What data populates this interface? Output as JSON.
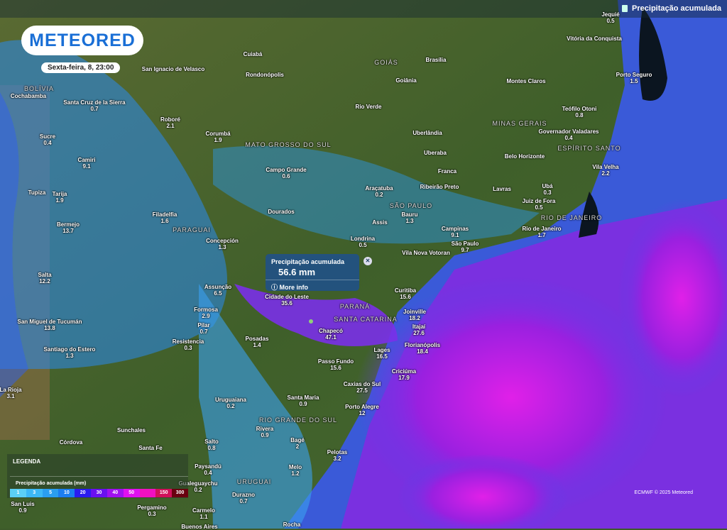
{
  "header": {
    "layer_title": "Precipitação acumulada",
    "layer_icon": "rain-gauge-icon"
  },
  "logo": "METEORED",
  "date": "Sexta-feira, 8, 23:00",
  "popup": {
    "title": "Precipitação acumulada",
    "value": "56.6 mm",
    "more": "More info",
    "close": "✕"
  },
  "legend": {
    "title": "LEGENDA",
    "subtitle": "Precipitação acumulada (mm)",
    "steps": [
      {
        "v": "1",
        "c": "#5bcff5"
      },
      {
        "v": "3",
        "c": "#3cb8f5"
      },
      {
        "v": "5",
        "c": "#2a9ef0"
      },
      {
        "v": "10",
        "c": "#1b7ef0"
      },
      {
        "v": "20",
        "c": "#2a1cf0"
      },
      {
        "v": "30",
        "c": "#6a10f0"
      },
      {
        "v": "40",
        "c": "#a010f0"
      },
      {
        "v": "50",
        "c": "#e010f0"
      },
      {
        "v": "",
        "c": "#f010c0"
      },
      {
        "v": "150",
        "c": "#d0105a"
      },
      {
        "v": "300",
        "c": "#6a0010"
      }
    ]
  },
  "credit": "ECMWF © 2025 Meteored",
  "regions": [
    "BOLÍVIA",
    "GOIÁS",
    "MINAS GERAIS",
    "ESPÍRITO SANTO",
    "MATO GROSSO DO SUL",
    "SÃO PAULO",
    "RIO DE JANEIRO",
    "PARAGUAI",
    "PARANÁ",
    "SANTA CATARINA",
    "RIO GRANDE DO SUL",
    "URUGUAI"
  ],
  "cities": [
    {
      "n": "Jequié",
      "v": "0.5"
    },
    {
      "n": "Vitória da Conquista",
      "v": ""
    },
    {
      "n": "Cuiabá",
      "v": ""
    },
    {
      "n": "Brasília",
      "v": ""
    },
    {
      "n": "Rondonópolis",
      "v": ""
    },
    {
      "n": "Goiânia",
      "v": ""
    },
    {
      "n": "Montes Claros",
      "v": ""
    },
    {
      "n": "Porto Seguro",
      "v": "1.5"
    },
    {
      "n": "San Ignacio de Velasco",
      "v": ""
    },
    {
      "n": "Cochabamba",
      "v": ""
    },
    {
      "n": "Santa Cruz de la Sierra",
      "v": "0.7"
    },
    {
      "n": "Roboré",
      "v": "2.1"
    },
    {
      "n": "Rio Verde",
      "v": ""
    },
    {
      "n": "Teófilo Otoni",
      "v": "0.8"
    },
    {
      "n": "Sucre",
      "v": "0.4"
    },
    {
      "n": "Corumbá",
      "v": "1.9"
    },
    {
      "n": "Uberlândia",
      "v": ""
    },
    {
      "n": "Governador Valadares",
      "v": "0.4"
    },
    {
      "n": "Camiri",
      "v": "9.1"
    },
    {
      "n": "Uberaba",
      "v": ""
    },
    {
      "n": "Belo Horizonte",
      "v": ""
    },
    {
      "n": "Campo Grande",
      "v": "0.6"
    },
    {
      "n": "Franca",
      "v": ""
    },
    {
      "n": "Vila Velha",
      "v": "2.2"
    },
    {
      "n": "Tupiza",
      "v": ""
    },
    {
      "n": "Tarija",
      "v": "1.9"
    },
    {
      "n": "Araçatuba",
      "v": "0.2"
    },
    {
      "n": "Ribeirão Preto",
      "v": ""
    },
    {
      "n": "Lavras",
      "v": ""
    },
    {
      "n": "Ubá",
      "v": "0.3"
    },
    {
      "n": "Juiz de Fora",
      "v": "0.5"
    },
    {
      "n": "Dourados",
      "v": ""
    },
    {
      "n": "Filadelfia",
      "v": "1.6"
    },
    {
      "n": "Bauru",
      "v": "1.3"
    },
    {
      "n": "Assis",
      "v": ""
    },
    {
      "n": "Bermejo",
      "v": "13.7"
    },
    {
      "n": "Concepción",
      "v": "1.3"
    },
    {
      "n": "Londrina",
      "v": "0.5"
    },
    {
      "n": "Campinas",
      "v": "9.1"
    },
    {
      "n": "São Paulo",
      "v": "9.7"
    },
    {
      "n": "Rio de Janeiro",
      "v": "1.7"
    },
    {
      "n": "Salta",
      "v": "12.2"
    },
    {
      "n": "Assunção",
      "v": "6.5"
    },
    {
      "n": "Cidade do Leste",
      "v": "35.6"
    },
    {
      "n": "Curitiba",
      "v": "15.6"
    },
    {
      "n": "Formosa",
      "v": "2.9"
    },
    {
      "n": "Joinville",
      "v": "18.2"
    },
    {
      "n": "San Miguel de Tucumán",
      "v": "13.8"
    },
    {
      "n": "Pilar",
      "v": "0.7"
    },
    {
      "n": "Itajaí",
      "v": "27.6"
    },
    {
      "n": "Chapecó",
      "v": "47.1"
    },
    {
      "n": "Resistencia",
      "v": "0.3"
    },
    {
      "n": "Posadas",
      "v": "1.4"
    },
    {
      "n": "Florianópolis",
      "v": "18.4"
    },
    {
      "n": "Lages",
      "v": "16.5"
    },
    {
      "n": "Santiago do Estero",
      "v": "1.3"
    },
    {
      "n": "Passo Fundo",
      "v": "15.6"
    },
    {
      "n": "Criciúma",
      "v": "17.9"
    },
    {
      "n": "La Rioja",
      "v": "3.1"
    },
    {
      "n": "Caxias do Sul",
      "v": "27.5"
    },
    {
      "n": "Santa Maria",
      "v": "0.9"
    },
    {
      "n": "Uruguaiana",
      "v": "0.2"
    },
    {
      "n": "Porto Alegre",
      "v": "12"
    },
    {
      "n": "Sunchales",
      "v": ""
    },
    {
      "n": "Rivera",
      "v": "0.9"
    },
    {
      "n": "Bagé",
      "v": "2"
    },
    {
      "n": "Córdova",
      "v": ""
    },
    {
      "n": "Salto",
      "v": "0.8"
    },
    {
      "n": "Santa Fe",
      "v": ""
    },
    {
      "n": "Pelotas",
      "v": "3.2"
    },
    {
      "n": "Paysandú",
      "v": "0.4"
    },
    {
      "n": "Melo",
      "v": "1.2"
    },
    {
      "n": "Gualeguaychu",
      "v": "0.2"
    },
    {
      "n": "Durazno",
      "v": "0.7"
    },
    {
      "n": "Pergamino",
      "v": "0.3"
    },
    {
      "n": "Carmelo",
      "v": "1.1"
    },
    {
      "n": "Buenos Aires",
      "v": ""
    },
    {
      "n": "Rocha",
      "v": ""
    },
    {
      "n": "San Luis",
      "v": "0.9"
    },
    {
      "n": "Vila Nova Votoran",
      "v": ""
    }
  ]
}
